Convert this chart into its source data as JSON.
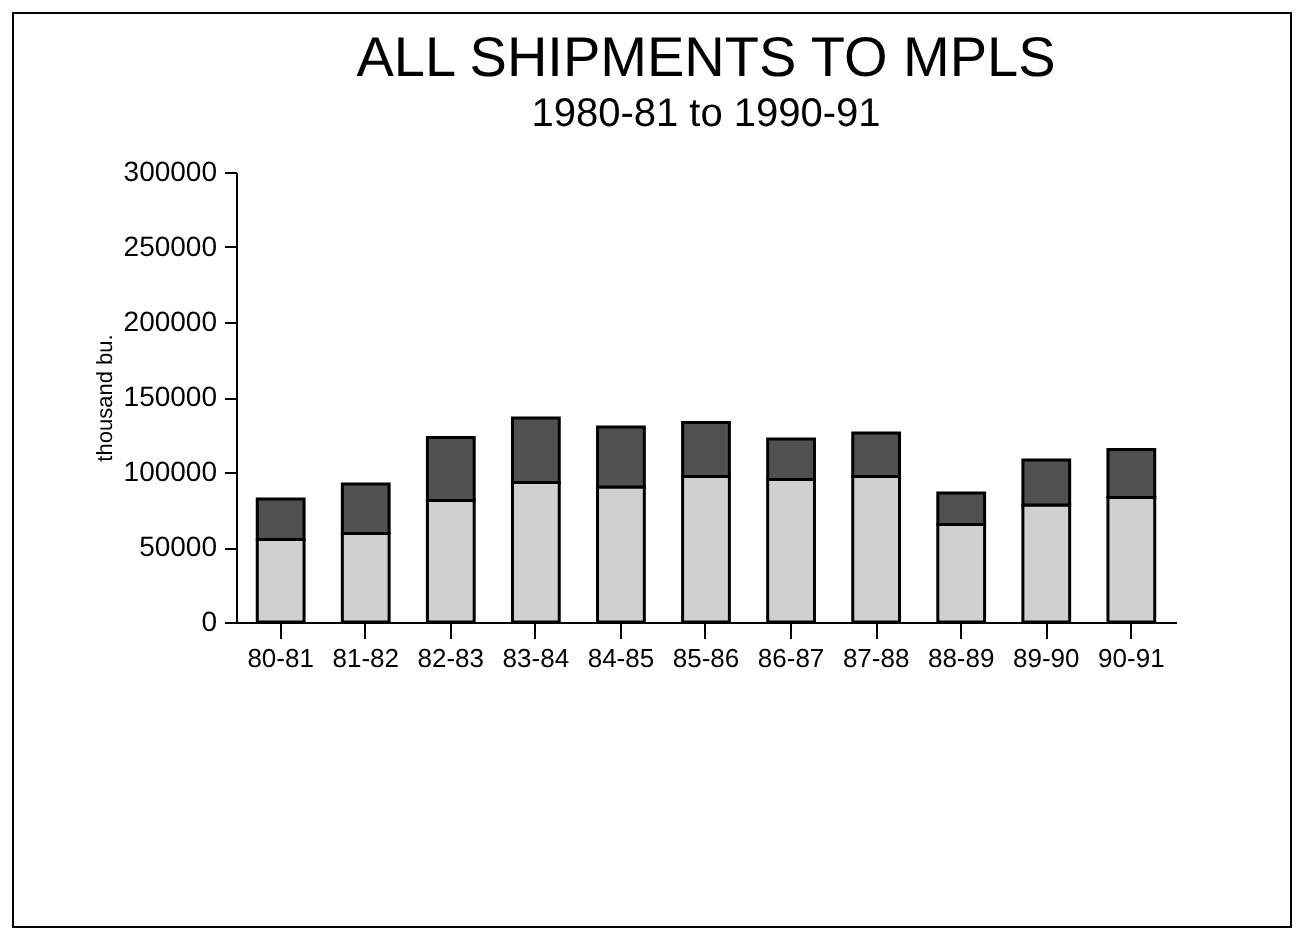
{
  "chart_data": {
    "type": "bar",
    "title": "ALL SHIPMENTS TO MPLS",
    "subtitle": "1980-81 to 1990-91",
    "ylabel": "thousand bu.",
    "categories": [
      "80-81",
      "81-82",
      "82-83",
      "83-84",
      "84-85",
      "85-86",
      "86-87",
      "87-88",
      "88-89",
      "89-90",
      "90-91"
    ],
    "stacked": true,
    "series": [
      {
        "color": "#d0d0d0",
        "values": [
          55000,
          59000,
          81000,
          93000,
          90000,
          97000,
          95000,
          97000,
          65000,
          78000,
          83000
        ]
      },
      {
        "color": "#505050",
        "values": [
          27000,
          33000,
          42000,
          43000,
          40000,
          36000,
          27000,
          29000,
          21000,
          30000,
          32000
        ]
      }
    ],
    "ylim": [
      0,
      300000
    ],
    "yticks": [
      0,
      50000,
      100000,
      150000,
      200000,
      250000,
      300000
    ],
    "grid": false,
    "legend": false
  }
}
